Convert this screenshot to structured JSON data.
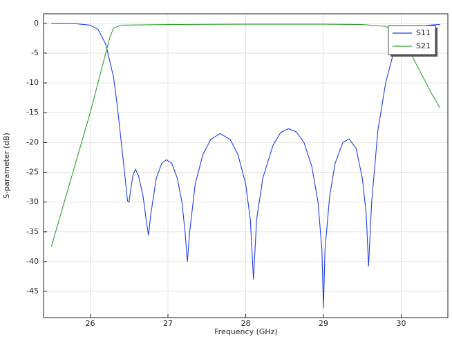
{
  "chart_data": {
    "type": "line",
    "xlabel": "Frequency (GHz)",
    "ylabel": "S-parameter (dB)",
    "xlim": [
      25.4,
      30.6
    ],
    "ylim": [
      -49.4,
      1.6
    ],
    "xticks": [
      26,
      27,
      28,
      29,
      30
    ],
    "yticks": [
      0,
      -5,
      -10,
      -15,
      -20,
      -25,
      -30,
      -35,
      -40,
      -45
    ],
    "grid": true,
    "legend": "upper right",
    "series": [
      {
        "name": "S11",
        "color": "#1f3fe0",
        "x": [
          25.5,
          25.8,
          26.0,
          26.1,
          26.2,
          26.3,
          26.35,
          26.4,
          26.45,
          26.48,
          26.5,
          26.52,
          26.55,
          26.58,
          26.62,
          26.68,
          26.72,
          26.75,
          26.78,
          26.85,
          26.92,
          26.98,
          27.05,
          27.12,
          27.18,
          27.22,
          27.25,
          27.28,
          27.35,
          27.45,
          27.55,
          27.67,
          27.8,
          27.9,
          28.0,
          28.06,
          28.1,
          28.14,
          28.22,
          28.35,
          28.45,
          28.55,
          28.65,
          28.75,
          28.85,
          28.93,
          28.98,
          29.0,
          29.02,
          29.08,
          29.15,
          29.25,
          29.33,
          29.42,
          29.5,
          29.55,
          29.58,
          29.62,
          29.7,
          29.8,
          29.9,
          30.0,
          30.1,
          30.2,
          30.35,
          30.5
        ],
        "values": [
          0,
          -0.05,
          -0.3,
          -1,
          -3.5,
          -9,
          -14,
          -20,
          -26,
          -29.8,
          -30,
          -28,
          -25.5,
          -24.5,
          -25.5,
          -29,
          -33,
          -35.6,
          -32,
          -26,
          -23.5,
          -22.9,
          -23.5,
          -26,
          -30,
          -35,
          -40,
          -35,
          -27,
          -22,
          -19.5,
          -18.5,
          -19.5,
          -22,
          -27,
          -33,
          -43,
          -33,
          -26,
          -20.5,
          -18.3,
          -17.7,
          -18.2,
          -20,
          -24,
          -30,
          -38,
          -47.8,
          -38,
          -29,
          -23.5,
          -20,
          -19.4,
          -21,
          -26,
          -32,
          -40.8,
          -30,
          -18,
          -10,
          -5,
          -2.5,
          -1.2,
          -0.6,
          -0.3,
          -0.2
        ]
      },
      {
        "name": "S21",
        "color": "#2ca02c",
        "x": [
          25.5,
          25.6,
          25.7,
          25.8,
          25.9,
          26.0,
          26.1,
          26.2,
          26.25,
          26.3,
          26.4,
          27.0,
          28.0,
          29.0,
          29.5,
          29.8,
          29.9,
          30.0,
          30.1,
          30.2,
          30.3,
          30.4,
          30.5
        ],
        "values": [
          -37.5,
          -33,
          -28.5,
          -24,
          -19.5,
          -15,
          -10,
          -5,
          -2.5,
          -0.8,
          -0.3,
          -0.2,
          -0.15,
          -0.15,
          -0.2,
          -0.5,
          -1.2,
          -2.5,
          -4.5,
          -7,
          -9.5,
          -12,
          -14.2
        ]
      }
    ]
  }
}
